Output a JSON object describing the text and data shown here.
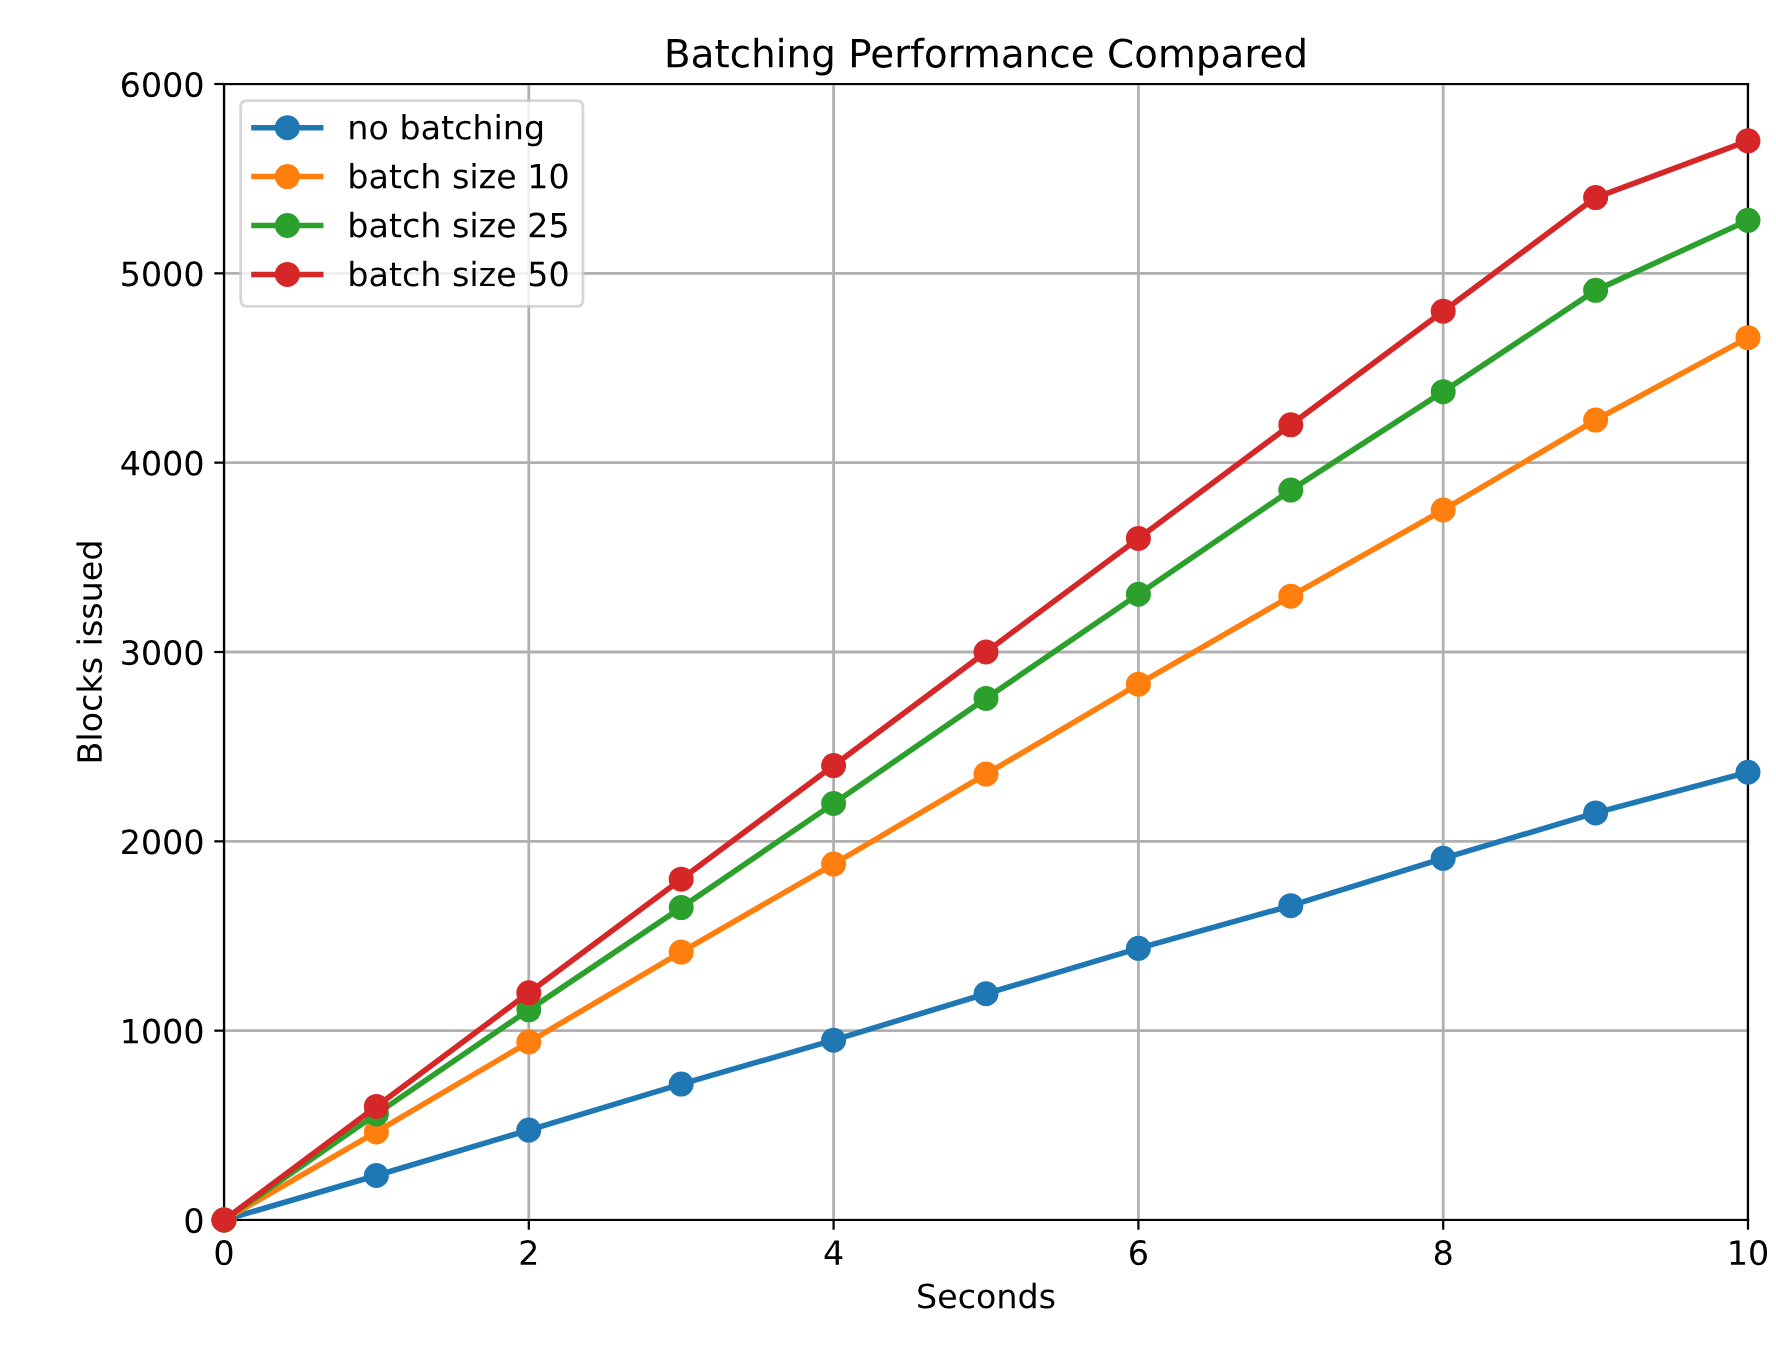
{
  "chart_data": {
    "type": "line",
    "title": "Batching Performance Compared",
    "xlabel": "Seconds",
    "ylabel": "Blocks issued",
    "x": [
      0,
      1,
      2,
      3,
      4,
      5,
      6,
      7,
      8,
      9,
      10
    ],
    "series": [
      {
        "name": "no batching",
        "color": "#1f77b4",
        "values": [
          0,
          235,
          475,
          718,
          950,
          1195,
          1435,
          1660,
          1910,
          2150,
          2365
        ]
      },
      {
        "name": "batch size 10",
        "color": "#ff7f0e",
        "values": [
          0,
          465,
          940,
          1415,
          1880,
          2355,
          2830,
          3295,
          3750,
          4225,
          4660
        ]
      },
      {
        "name": "batch size 25",
        "color": "#2ca02c",
        "values": [
          0,
          560,
          1110,
          1650,
          2200,
          2755,
          3305,
          3855,
          4375,
          4910,
          5280
        ]
      },
      {
        "name": "batch size 50",
        "color": "#d62728",
        "values": [
          0,
          600,
          1200,
          1800,
          2400,
          3000,
          3600,
          4200,
          4800,
          5400,
          5700
        ]
      }
    ],
    "xlim": [
      0,
      10
    ],
    "ylim": [
      0,
      6000
    ],
    "xticks": [
      0,
      2,
      4,
      6,
      8,
      10
    ],
    "yticks": [
      0,
      1000,
      2000,
      3000,
      4000,
      5000,
      6000
    ],
    "grid": true,
    "legend": "top left",
    "marker": "circle",
    "line_style": "solid"
  }
}
